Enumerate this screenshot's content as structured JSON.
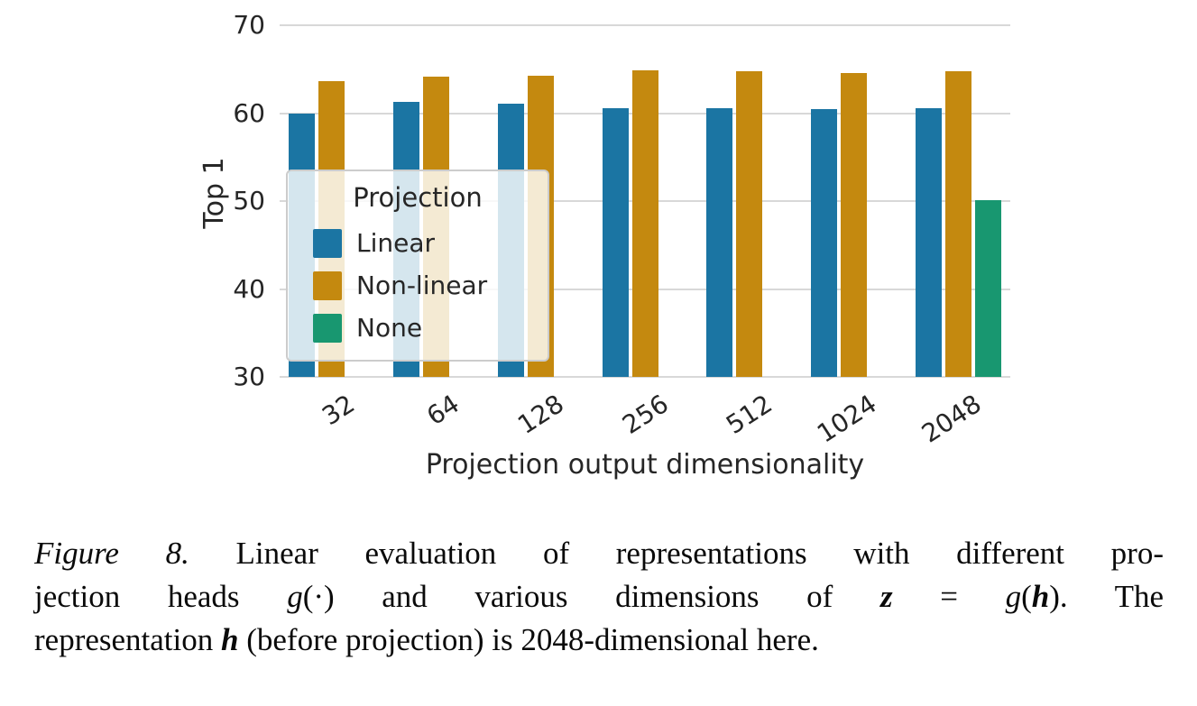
{
  "chart_data": {
    "type": "bar",
    "title": "",
    "xlabel": "Projection output dimensionality",
    "ylabel": "Top 1",
    "ylim": [
      30,
      70
    ],
    "yticks": [
      30,
      40,
      50,
      60,
      70
    ],
    "categories": [
      "32",
      "64",
      "128",
      "256",
      "512",
      "1024",
      "2048"
    ],
    "grid": true,
    "legend": {
      "title": "Projection",
      "position": "center-left inside plot"
    },
    "series": [
      {
        "name": "Linear",
        "color": "#1b75a3",
        "values": [
          60.0,
          61.3,
          61.1,
          60.6,
          60.6,
          60.5,
          60.6
        ]
      },
      {
        "name": "Non-linear",
        "color": "#c4890f",
        "values": [
          63.6,
          64.2,
          64.3,
          64.9,
          64.8,
          64.6,
          64.8
        ]
      },
      {
        "name": "None",
        "color": "#189770",
        "values": [
          null,
          null,
          null,
          null,
          null,
          null,
          50.1
        ]
      }
    ]
  },
  "caption": {
    "lines": [
      [
        {
          "t": "Figure 8.",
          "s": "i"
        },
        {
          "t": " Linear evaluation of representations with different pro-",
          "s": "n"
        }
      ],
      [
        {
          "t": "jection heads ",
          "s": "n"
        },
        {
          "t": "g",
          "s": "i"
        },
        {
          "t": "(·) and various dimensions of ",
          "s": "n"
        },
        {
          "t": "z",
          "s": "bi"
        },
        {
          "t": " = ",
          "s": "n"
        },
        {
          "t": "g",
          "s": "i"
        },
        {
          "t": "(",
          "s": "n"
        },
        {
          "t": "h",
          "s": "bi"
        },
        {
          "t": "). The",
          "s": "n"
        }
      ],
      [
        {
          "t": "representation ",
          "s": "n"
        },
        {
          "t": "h",
          "s": "bi"
        },
        {
          "t": " (before projection) is 2048-dimensional here.",
          "s": "n"
        }
      ]
    ]
  }
}
